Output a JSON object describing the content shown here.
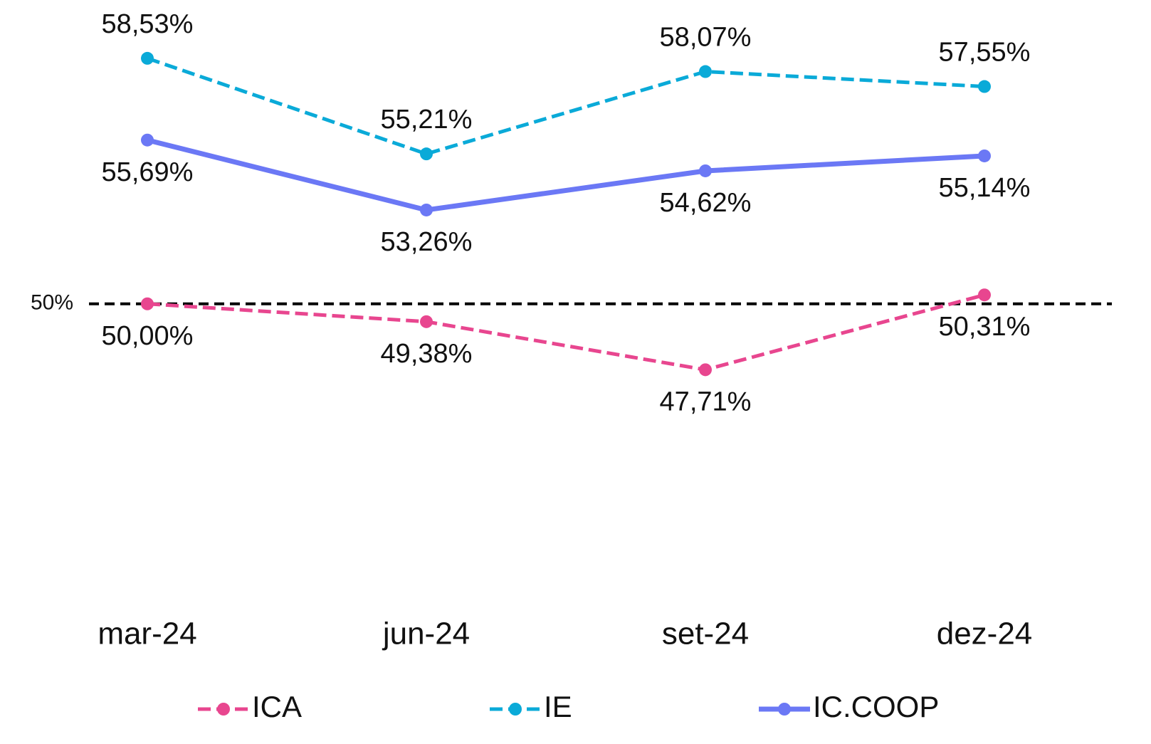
{
  "chart_data": {
    "type": "line",
    "categories": [
      "mar-24",
      "jun-24",
      "set-24",
      "dez-24"
    ],
    "series": [
      {
        "name": "ICA",
        "color": "#e8468f",
        "dashed": true,
        "values": [
          50.0,
          49.38,
          47.71,
          50.31
        ],
        "value_labels": [
          "50,00%",
          "49,38%",
          "47,71%",
          "50,31%"
        ]
      },
      {
        "name": "IE",
        "color": "#0aaad8",
        "dashed": true,
        "values": [
          58.53,
          55.21,
          58.07,
          57.55
        ],
        "value_labels": [
          "58,53%",
          "55,21%",
          "58,07%",
          "57,55%"
        ]
      },
      {
        "name": "IC.COOP",
        "color": "#6b78f5",
        "dashed": false,
        "values": [
          55.69,
          53.26,
          54.62,
          55.14
        ],
        "value_labels": [
          "55,69%",
          "53,26%",
          "54,62%",
          "55,14%"
        ]
      }
    ],
    "ylim": [
      40,
      60
    ],
    "yticks": [
      {
        "value": 50,
        "label": "50%"
      }
    ],
    "legend": "bottom"
  }
}
